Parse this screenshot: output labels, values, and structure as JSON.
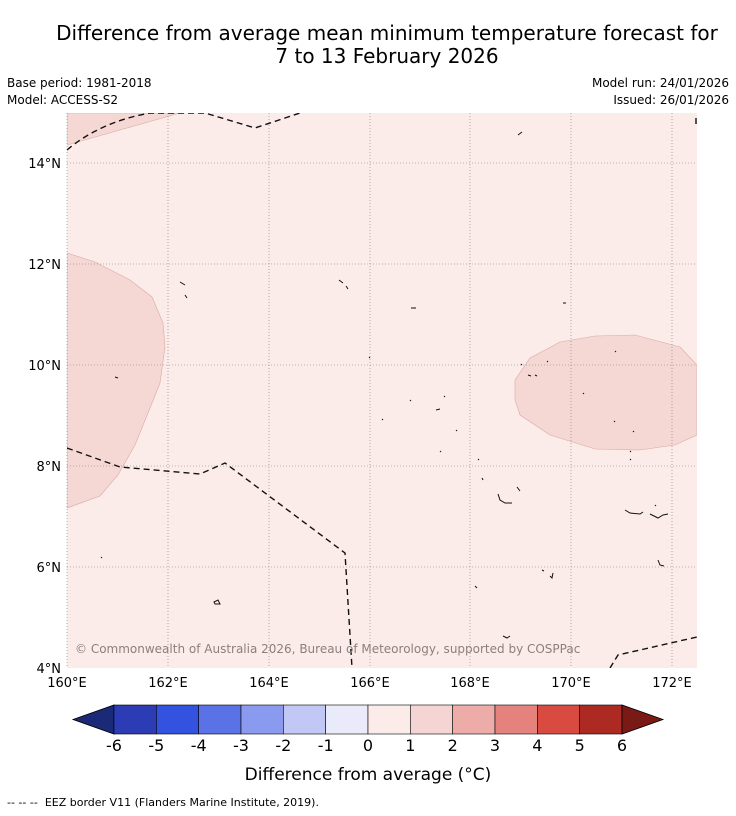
{
  "header": {
    "title_line1": "Difference from average mean minimum temperature forecast for",
    "title_line2": "7 to 13 February 2026",
    "base_period": "Base period: 1981-2018",
    "model": "Model: ACCESS-S2",
    "model_run": "Model run: 24/01/2026",
    "issued": "Issued: 26/01/2026"
  },
  "map": {
    "lat_labels": [
      "14°N",
      "12°N",
      "10°N",
      "8°N",
      "6°N",
      "4°N"
    ],
    "lon_labels": [
      "160°E",
      "162°E",
      "164°E",
      "166°E",
      "168°E",
      "170°E",
      "172°E"
    ],
    "lat_range": [
      4,
      15
    ],
    "lon_range": [
      160,
      172.5
    ],
    "copyright": "© Commonwealth of Australia 2026, Bureau of Meteorology, supported by COSPPac",
    "background_class": "0 to 1",
    "anomaly_regions_class": "1 to 2"
  },
  "colorbar": {
    "tick_labels": [
      "-6",
      "-5",
      "-4",
      "-3",
      "-2",
      "-1",
      "0",
      "1",
      "2",
      "3",
      "4",
      "5",
      "6"
    ],
    "colors": [
      "#1a2a78",
      "#2b3cb5",
      "#3452e0",
      "#5b72e6",
      "#8a9bef",
      "#c1c8f5",
      "#e9ebfb",
      "#fbecea",
      "#f5d5d3",
      "#eeaca8",
      "#e6827d",
      "#d94b41",
      "#ad2a22",
      "#7a1a17"
    ],
    "label": "Difference from average (°C)"
  },
  "legend": {
    "eez_line_symbol": "-- -- -- ",
    "eez_text": "EEZ border V11 (Flanders Marine Institute, 2019)."
  }
}
